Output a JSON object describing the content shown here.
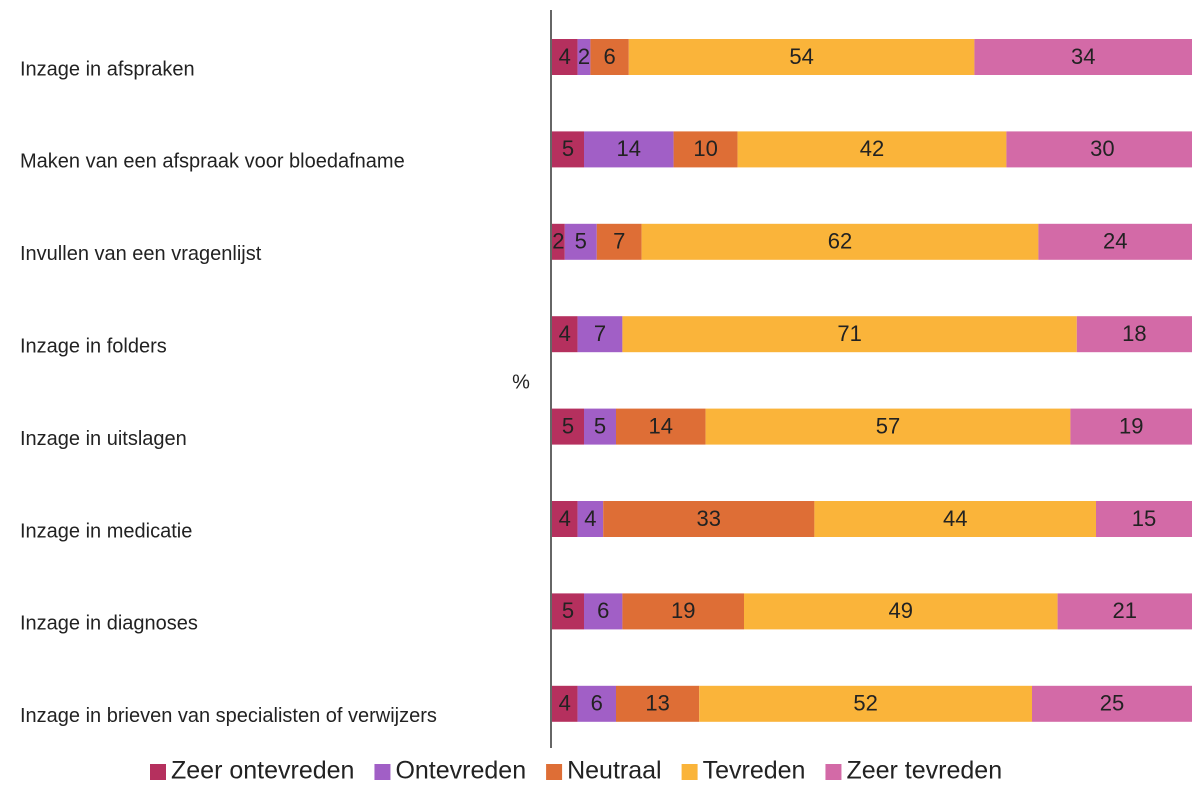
{
  "chart_data": {
    "type": "stacked_barh",
    "y_label": "%",
    "categories": [
      "Inzage in afspraken",
      "Maken van een afspraak voor bloedafname",
      "Invullen van een vragenlijst",
      "Inzage in folders",
      "Inzage in uitslagen",
      "Inzage in medicatie",
      "Inzage in diagnoses",
      "Inzage in brieven van specialisten of verwijzers"
    ],
    "series": [
      {
        "name": "Zeer ontevreden",
        "color": "#b5305e",
        "values": [
          4,
          5,
          2,
          4,
          5,
          4,
          5,
          4
        ]
      },
      {
        "name": "Ontevreden",
        "color": "#a15fc6",
        "values": [
          2,
          14,
          5,
          7,
          5,
          4,
          6,
          6
        ]
      },
      {
        "name": "Neutraal",
        "color": "#de6e36",
        "values": [
          6,
          10,
          7,
          null,
          14,
          33,
          19,
          13
        ]
      },
      {
        "name": "Tevreden",
        "color": "#fab43a",
        "values": [
          54,
          42,
          62,
          71,
          57,
          44,
          49,
          52
        ]
      },
      {
        "name": "Zeer tevreden",
        "color": "#d36aa7",
        "values": [
          34,
          30,
          24,
          18,
          19,
          15,
          21,
          25
        ]
      }
    ],
    "xlim": [
      0,
      100
    ],
    "legend": "bottom"
  }
}
